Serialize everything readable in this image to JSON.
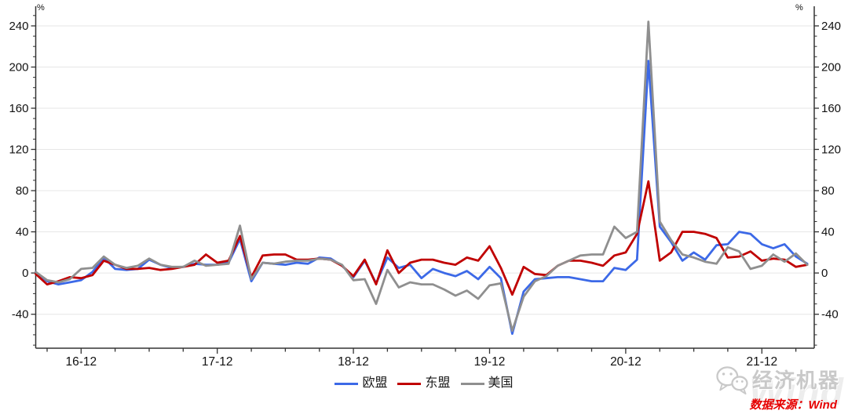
{
  "chart": {
    "y_unit_left": "%",
    "y_unit_right": "%"
  },
  "chart_data": {
    "type": "line",
    "title": "",
    "xlabel": "",
    "ylabel": "%",
    "grid": "horizontal-major",
    "legend_position": "bottom-center",
    "y_ticks": [
      -40,
      0,
      40,
      80,
      120,
      160,
      200,
      240
    ],
    "y_minor_step": 10,
    "ylim": [
      -73,
      259
    ],
    "x_tick_labels": [
      "16-12",
      "17-12",
      "18-12",
      "19-12",
      "20-12",
      "21-12"
    ],
    "x": [
      "2016-08",
      "2016-09",
      "2016-10",
      "2016-11",
      "2016-12",
      "2017-01",
      "2017-02",
      "2017-03",
      "2017-04",
      "2017-05",
      "2017-06",
      "2017-07",
      "2017-08",
      "2017-09",
      "2017-10",
      "2017-11",
      "2017-12",
      "2018-01",
      "2018-02",
      "2018-03",
      "2018-04",
      "2018-05",
      "2018-06",
      "2018-07",
      "2018-08",
      "2018-09",
      "2018-10",
      "2018-11",
      "2018-12",
      "2019-01",
      "2019-02",
      "2019-03",
      "2019-04",
      "2019-05",
      "2019-06",
      "2019-07",
      "2019-08",
      "2019-09",
      "2019-10",
      "2019-11",
      "2019-12",
      "2020-01",
      "2020-02",
      "2020-03",
      "2020-04",
      "2020-05",
      "2020-06",
      "2020-07",
      "2020-08",
      "2020-09",
      "2020-10",
      "2020-11",
      "2020-12",
      "2021-01",
      "2021-02",
      "2021-03",
      "2021-04",
      "2021-05",
      "2021-06",
      "2021-07",
      "2021-08",
      "2021-09",
      "2021-10",
      "2021-11",
      "2021-12",
      "2022-01",
      "2022-02",
      "2022-03",
      "2022-04"
    ],
    "series": [
      {
        "name": "欧盟",
        "color": "#3c69e7",
        "values": [
          1,
          -8,
          -11,
          -9,
          -7,
          1,
          15,
          4,
          3,
          4,
          13,
          8,
          5,
          6,
          9,
          8,
          8,
          10,
          33,
          -8,
          10,
          9,
          8,
          10,
          9,
          15,
          14,
          7,
          -4,
          12,
          -10,
          15,
          5,
          8,
          -5,
          4,
          0,
          -3,
          2,
          -6,
          6,
          -5,
          -59,
          -18,
          -6,
          -5,
          -4,
          -4,
          -6,
          -8,
          -8,
          5,
          3,
          13,
          206,
          45,
          30,
          12,
          20,
          13,
          27,
          28,
          40,
          38,
          28,
          24,
          28,
          16,
          9
        ]
      },
      {
        "name": "东盟",
        "color": "#c00000",
        "values": [
          -1,
          -11,
          -8,
          -4,
          -5,
          -2,
          12,
          8,
          4,
          4,
          5,
          3,
          4,
          6,
          8,
          18,
          10,
          12,
          36,
          -4,
          17,
          18,
          18,
          13,
          13,
          14,
          13,
          7,
          -3,
          13,
          -11,
          22,
          0,
          10,
          13,
          13,
          10,
          8,
          15,
          12,
          26,
          5,
          -21,
          6,
          -1,
          -2,
          7,
          12,
          12,
          10,
          7,
          17,
          20,
          38,
          89,
          12,
          20,
          40,
          40,
          38,
          34,
          15,
          16,
          21,
          12,
          14,
          13,
          6,
          8
        ]
      },
      {
        "name": "美国",
        "color": "#8f8f8f",
        "values": [
          1,
          -7,
          -9,
          -6,
          4,
          5,
          16,
          8,
          5,
          7,
          14,
          8,
          6,
          6,
          12,
          7,
          8,
          9,
          46,
          -6,
          10,
          9,
          11,
          12,
          12,
          14,
          13,
          8,
          -7,
          -6,
          -30,
          3,
          -14,
          -9,
          -11,
          -11,
          -16,
          -22,
          -17,
          -25,
          -12,
          -10,
          -56,
          -23,
          -8,
          -3,
          7,
          12,
          17,
          18,
          18,
          45,
          34,
          40,
          244,
          50,
          32,
          18,
          15,
          11,
          9,
          25,
          21,
          4,
          7,
          18,
          11,
          19,
          8
        ]
      }
    ]
  },
  "branding": {
    "logo_text": "经济机器",
    "watermark": "Wind",
    "source_label": "数据来源：Wind",
    "source_color": "#e60000"
  }
}
